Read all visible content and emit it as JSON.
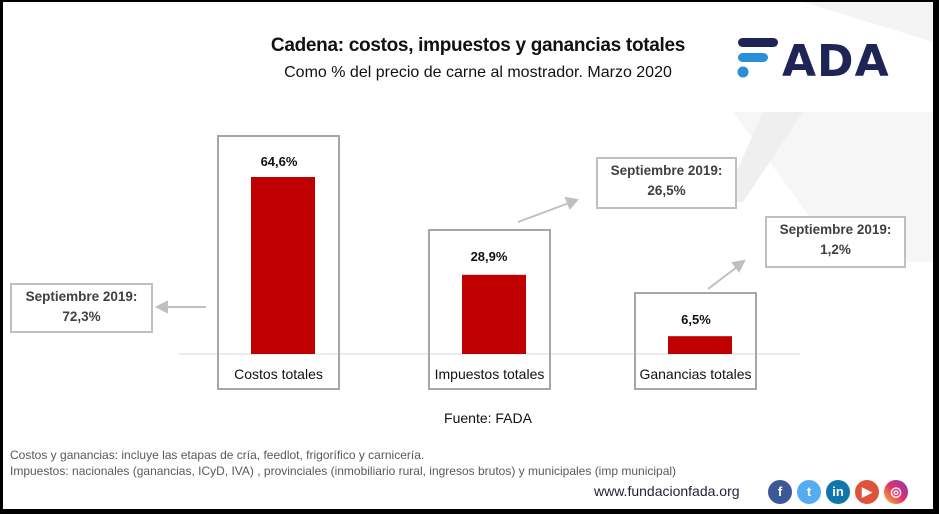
{
  "header": {
    "title": "Cadena: costos, impuestos y ganancias totales",
    "subtitle": "Como % del precio de carne al mostrador. Marzo 2020",
    "logo_text": "FADA"
  },
  "chart_data": {
    "type": "bar",
    "title": "Cadena: costos, impuestos y ganancias totales",
    "subtitle": "Como % del precio de carne al mostrador. Marzo 2020",
    "xlabel": "",
    "ylabel": "",
    "unit": "%",
    "ylim": [
      0,
      70
    ],
    "grid": false,
    "categories": [
      "Costos totales",
      "Impuestos totales",
      "Ganancias totales"
    ],
    "values": [
      64.6,
      28.9,
      6.5
    ],
    "data_labels": [
      "64,6%",
      "28,9%",
      "6,5%"
    ],
    "bar_color": "#c00000",
    "annotations": [
      {
        "category": "Costos totales",
        "label": "Septiembre 2019:",
        "value": 72.3,
        "value_label": "72,3%"
      },
      {
        "category": "Impuestos totales",
        "label": "Septiembre 2019:",
        "value": 26.5,
        "value_label": "26,5%"
      },
      {
        "category": "Ganancias totales",
        "label": "Septiembre 2019:",
        "value": 1.2,
        "value_label": "1,2%"
      }
    ]
  },
  "footer": {
    "source": "Fuente: FADA",
    "notes": [
      "Costos y ganancias: incluye las etapas de cría, feedlot, frigorífico y carnicería.",
      "Impuestos: nacionales (ganancias, ICyD, IVA) , provinciales (inmobiliario rural, ingresos brutos) y municipales (imp municipal)"
    ],
    "url": "www.fundacionfada.org",
    "social": [
      {
        "icon": "facebook-icon",
        "glyph": "f",
        "color": "#3b5998"
      },
      {
        "icon": "twitter-icon",
        "glyph": "t",
        "color": "#55acee"
      },
      {
        "icon": "linkedin-icon",
        "glyph": "in",
        "color": "#0e76a8"
      },
      {
        "icon": "youtube-icon",
        "glyph": "▶",
        "color": "#e0533a"
      },
      {
        "icon": "instagram-icon",
        "glyph": "◎",
        "color": "#c13584"
      }
    ]
  },
  "colors": {
    "accent": "#c00000",
    "logo_navy": "#1f2456",
    "logo_blue": "#2a8fd6"
  }
}
